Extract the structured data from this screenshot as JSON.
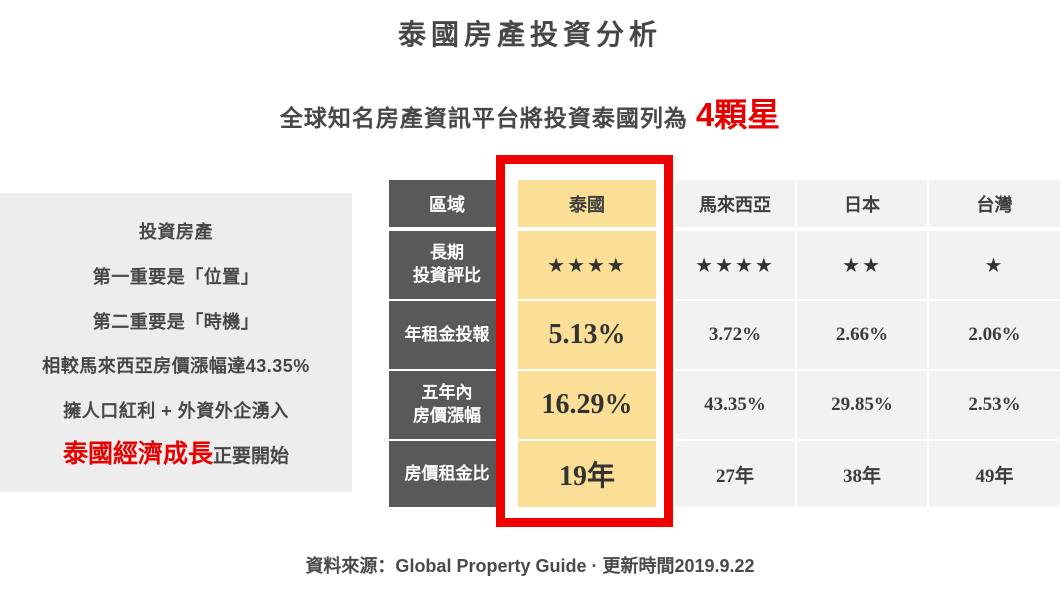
{
  "title": "泰國房產投資分析",
  "subtitle": {
    "text": "全球知名房產資訊平台將投資泰國列為",
    "highlight": "4顆星"
  },
  "info_panel": {
    "lines": [
      "投資房產",
      "第一重要是「位置」",
      "第二重要是「時機」",
      "相較馬來西亞房價漲幅達43.35%",
      "擁人口紅利 + 外資外企湧入"
    ],
    "conclusion": {
      "highlight": "泰國經濟成長",
      "rest": "正要開始"
    }
  },
  "table": {
    "corner": "區域",
    "row_labels": [
      "長期\n投資評比",
      "年租金投報",
      "五年內\n房價漲幅",
      "房價租金比"
    ],
    "columns": [
      {
        "name": "泰國",
        "highlighted": true,
        "values": [
          "★★★★",
          "5.13%",
          "16.29%",
          "19年"
        ]
      },
      {
        "name": "馬來西亞",
        "highlighted": false,
        "values": [
          "★★★★",
          "3.72%",
          "43.35%",
          "27年"
        ]
      },
      {
        "name": "日本",
        "highlighted": false,
        "values": [
          "★★",
          "2.66%",
          "29.85%",
          "38年"
        ]
      },
      {
        "name": "台灣",
        "highlighted": false,
        "values": [
          "★",
          "2.06%",
          "2.53%",
          "49年"
        ]
      }
    ]
  },
  "chart_data": {
    "type": "table",
    "title": "泰國房產投資分析",
    "categories": [
      "泰國",
      "馬來西亞",
      "日本",
      "台灣"
    ],
    "metrics": [
      {
        "label": "長期投資評比 (顆星)",
        "values": [
          4,
          4,
          2,
          1
        ]
      },
      {
        "label": "年租金投報 (%)",
        "values": [
          5.13,
          3.72,
          2.66,
          2.06
        ]
      },
      {
        "label": "五年內房價漲幅 (%)",
        "values": [
          16.29,
          43.35,
          29.85,
          2.53
        ]
      },
      {
        "label": "房價租金比 (年)",
        "values": [
          19,
          27,
          38,
          49
        ]
      }
    ],
    "highlighted_category": "泰國",
    "rating_note": "全球知名房產資訊平台將投資泰國列為4顆星"
  },
  "colors": {
    "accent_red": "#ee0000",
    "header_dark": "#58595b",
    "thailand_yellow": "#fbdf96",
    "cell_gray": "#f2f2f2",
    "panel_gray": "#ededed",
    "text_dark": "#474747"
  },
  "footer": {
    "source": "資料來源：Global Property Guide · 更新時間2019.9.22"
  }
}
